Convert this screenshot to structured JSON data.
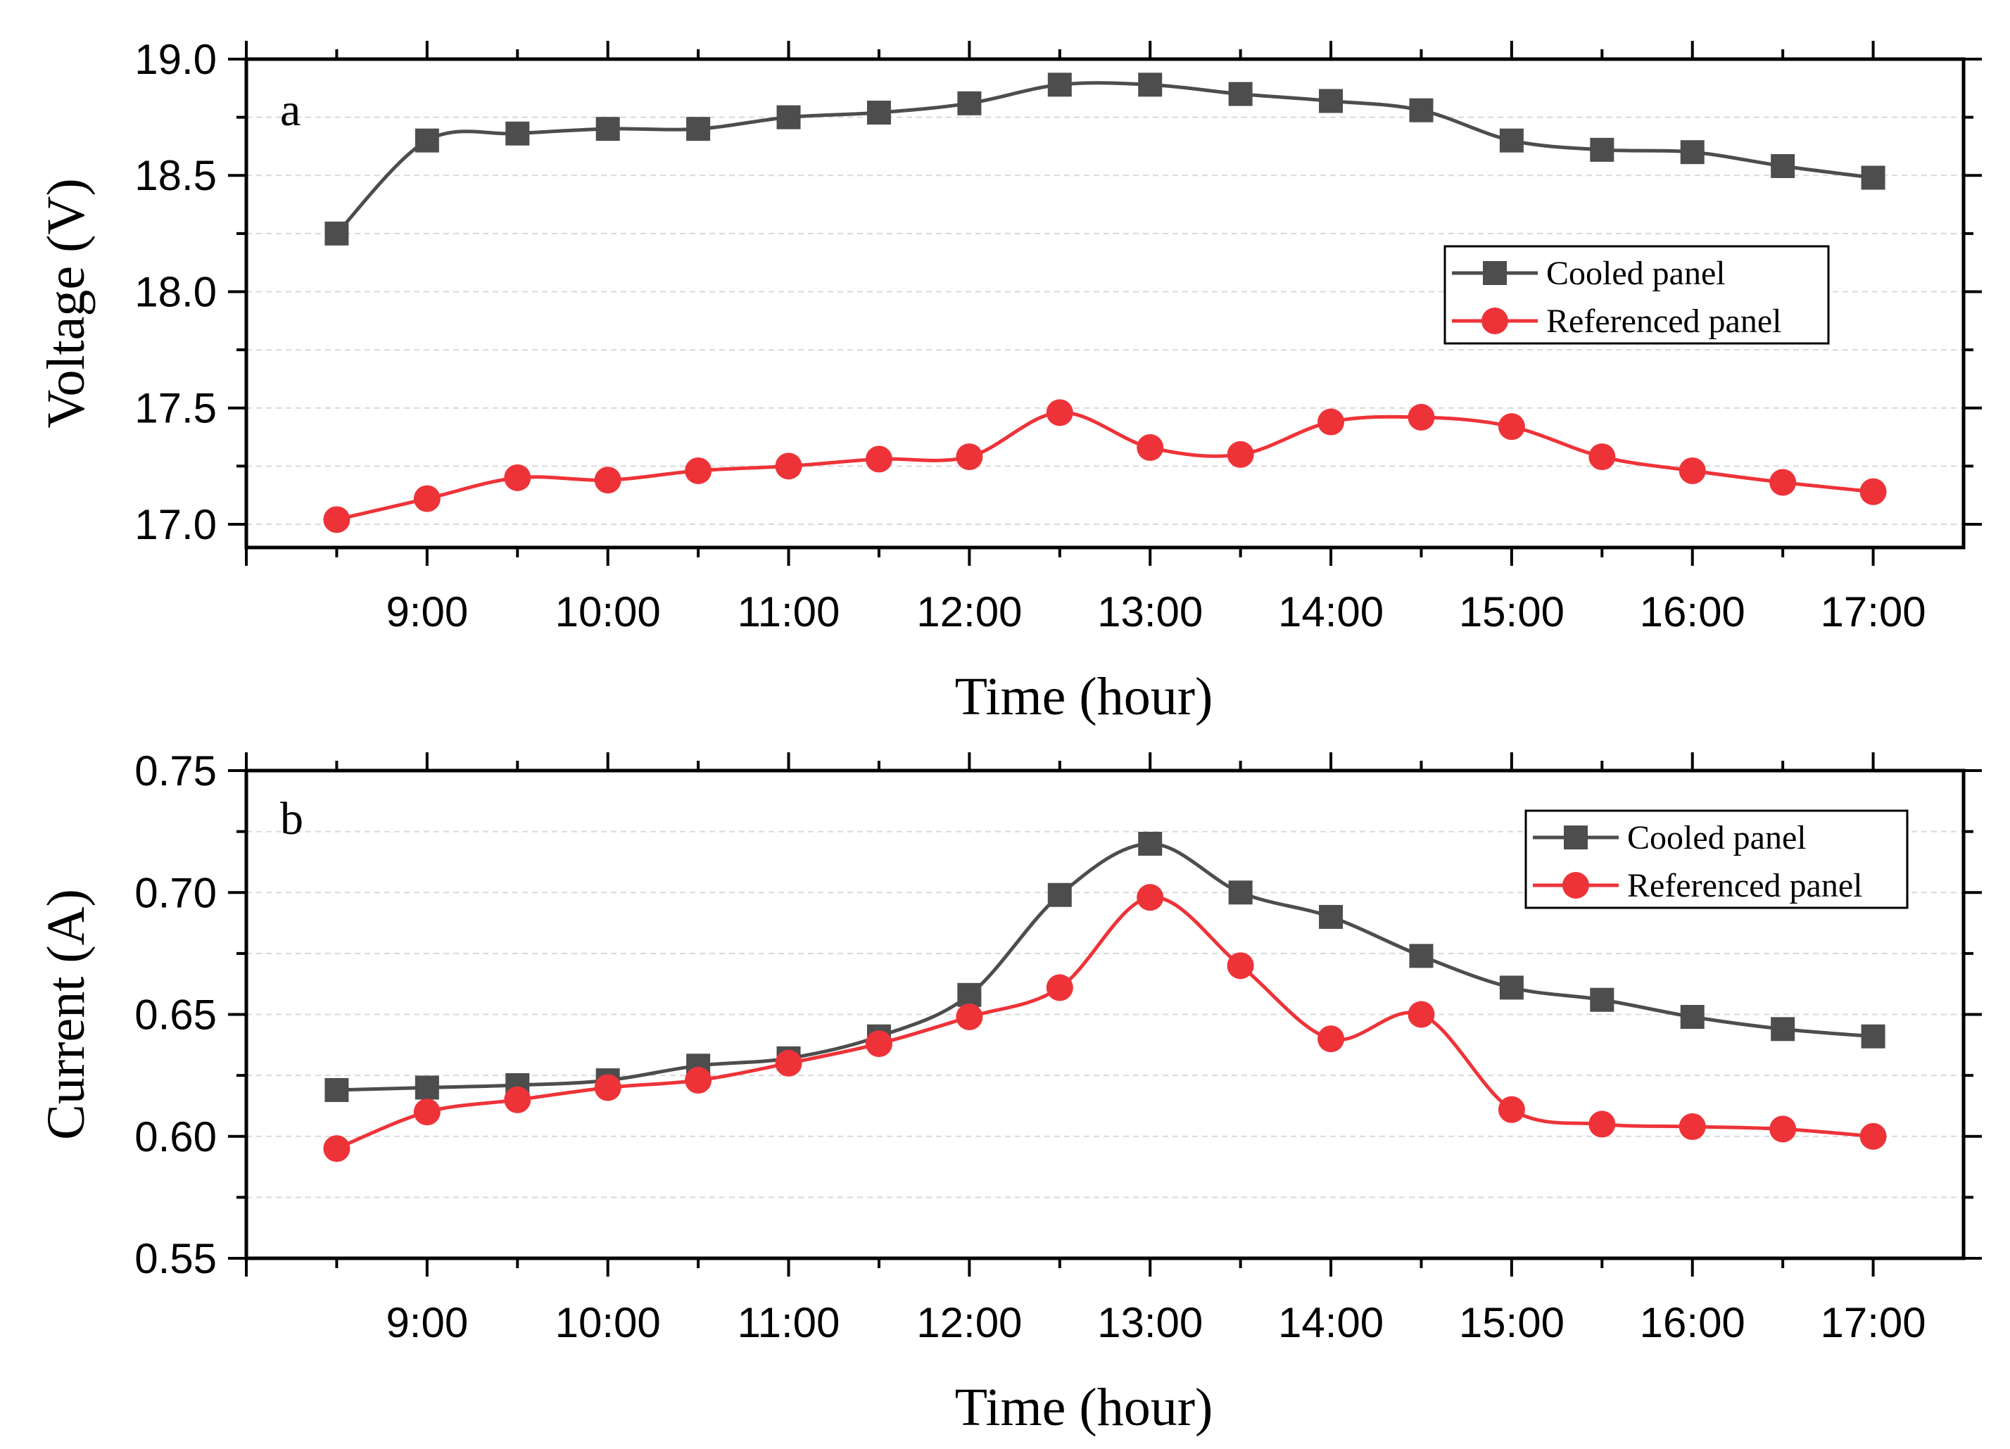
{
  "colors": {
    "cooled": "#4d4d4d",
    "referenced": "#ee3338",
    "grid": "#d9d9d9",
    "axis": "#000000"
  },
  "chart_data": [
    {
      "type": "line",
      "panel_label": "a",
      "xlabel": "Time (hour)",
      "ylabel": "Voltage (V)",
      "xlim": [
        8.0,
        17.5
      ],
      "ylim": [
        16.9,
        19.0
      ],
      "x_ticks": [
        9,
        10,
        11,
        12,
        13,
        14,
        15,
        16,
        17
      ],
      "x_tick_labels": [
        "9:00",
        "10:00",
        "11:00",
        "12:00",
        "13:00",
        "14:00",
        "15:00",
        "16:00",
        "17:00"
      ],
      "y_ticks": [
        17.0,
        17.5,
        18.0,
        18.5,
        19.0
      ],
      "y_tick_labels": [
        "17.0",
        "17.5",
        "18.0",
        "18.5",
        "19.0"
      ],
      "legend": {
        "position": "center-right"
      },
      "x": [
        8.5,
        9.0,
        9.5,
        10.0,
        10.5,
        11.0,
        11.5,
        12.0,
        12.5,
        13.0,
        13.5,
        14.0,
        14.5,
        15.0,
        15.5,
        16.0,
        16.5,
        17.0
      ],
      "series": [
        {
          "name": "Cooled panel",
          "marker": "square",
          "values": [
            18.25,
            18.65,
            18.68,
            18.7,
            18.7,
            18.75,
            18.77,
            18.81,
            18.89,
            18.89,
            18.85,
            18.82,
            18.78,
            18.65,
            18.61,
            18.6,
            18.54,
            18.49
          ]
        },
        {
          "name": "Referenced panel",
          "marker": "circle",
          "values": [
            17.02,
            17.11,
            17.2,
            17.19,
            17.23,
            17.25,
            17.28,
            17.29,
            17.48,
            17.33,
            17.3,
            17.44,
            17.46,
            17.42,
            17.29,
            17.23,
            17.18,
            17.14
          ]
        }
      ]
    },
    {
      "type": "line",
      "panel_label": "b",
      "xlabel": "Time (hour)",
      "ylabel": "Current (A)",
      "xlim": [
        8.0,
        17.5
      ],
      "ylim": [
        0.55,
        0.75
      ],
      "x_ticks": [
        9,
        10,
        11,
        12,
        13,
        14,
        15,
        16,
        17
      ],
      "x_tick_labels": [
        "9:00",
        "10:00",
        "11:00",
        "12:00",
        "13:00",
        "14:00",
        "15:00",
        "16:00",
        "17:00"
      ],
      "y_ticks": [
        0.55,
        0.6,
        0.65,
        0.7,
        0.75
      ],
      "y_tick_labels": [
        "0.55",
        "0.60",
        "0.65",
        "0.70",
        "0.75"
      ],
      "legend": {
        "position": "top-right"
      },
      "x": [
        8.5,
        9.0,
        9.5,
        10.0,
        10.5,
        11.0,
        11.5,
        12.0,
        12.5,
        13.0,
        13.5,
        14.0,
        14.5,
        15.0,
        15.5,
        16.0,
        16.5,
        17.0
      ],
      "series": [
        {
          "name": "Cooled panel",
          "marker": "square",
          "values": [
            0.619,
            0.62,
            0.621,
            0.623,
            0.629,
            0.632,
            0.641,
            0.658,
            0.699,
            0.72,
            0.7,
            0.69,
            0.674,
            0.661,
            0.656,
            0.649,
            0.644,
            0.641
          ]
        },
        {
          "name": "Referenced panel",
          "marker": "circle",
          "values": [
            0.595,
            0.61,
            0.615,
            0.62,
            0.623,
            0.63,
            0.638,
            0.649,
            0.661,
            0.698,
            0.67,
            0.64,
            0.65,
            0.611,
            0.605,
            0.604,
            0.603,
            0.6
          ]
        }
      ]
    }
  ]
}
